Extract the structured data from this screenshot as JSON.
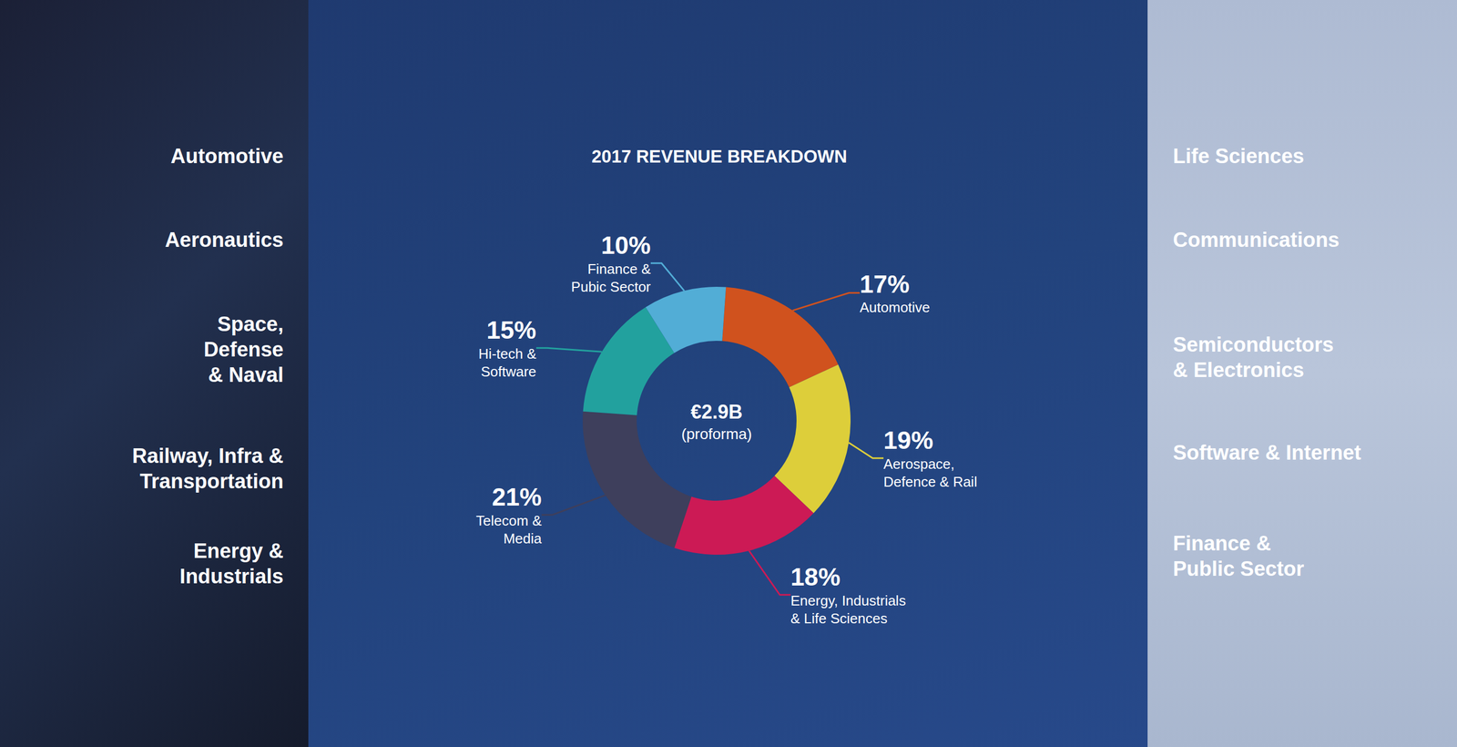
{
  "chart_data": {
    "type": "pie",
    "title": "2017 REVENUE BREAKDOWN",
    "categories": [
      "Automotive",
      "Aerospace,\nDefence & Rail",
      "Energy, Industrials\n& Life Sciences",
      "Telecom &\nMedia",
      "Hi-tech &\nSoftware",
      "Finance &\nPubic Sector"
    ],
    "values": [
      17,
      19,
      18,
      21,
      15,
      10
    ],
    "value_labels": [
      "17%",
      "19%",
      "18%",
      "21%",
      "15%",
      "10%"
    ],
    "colors": [
      "#d0521e",
      "#ddce3a",
      "#cc1a55",
      "#3e3f5c",
      "#22a19e",
      "#52add6"
    ],
    "data_labels": true,
    "annotations": {
      "center": [
        "€2.9B",
        "(proforma)"
      ],
      "left": [
        "Automotive",
        "Aeronautics",
        "Space,\nDefense\n& Naval",
        "Railway, Infra &\nTransportation",
        "Energy &\nIndustrials"
      ],
      "right": [
        "Life Sciences",
        "Communications",
        "Semiconductors\n& Electronics",
        "Software & Internet",
        "Finance &\nPublic Sector"
      ]
    }
  }
}
